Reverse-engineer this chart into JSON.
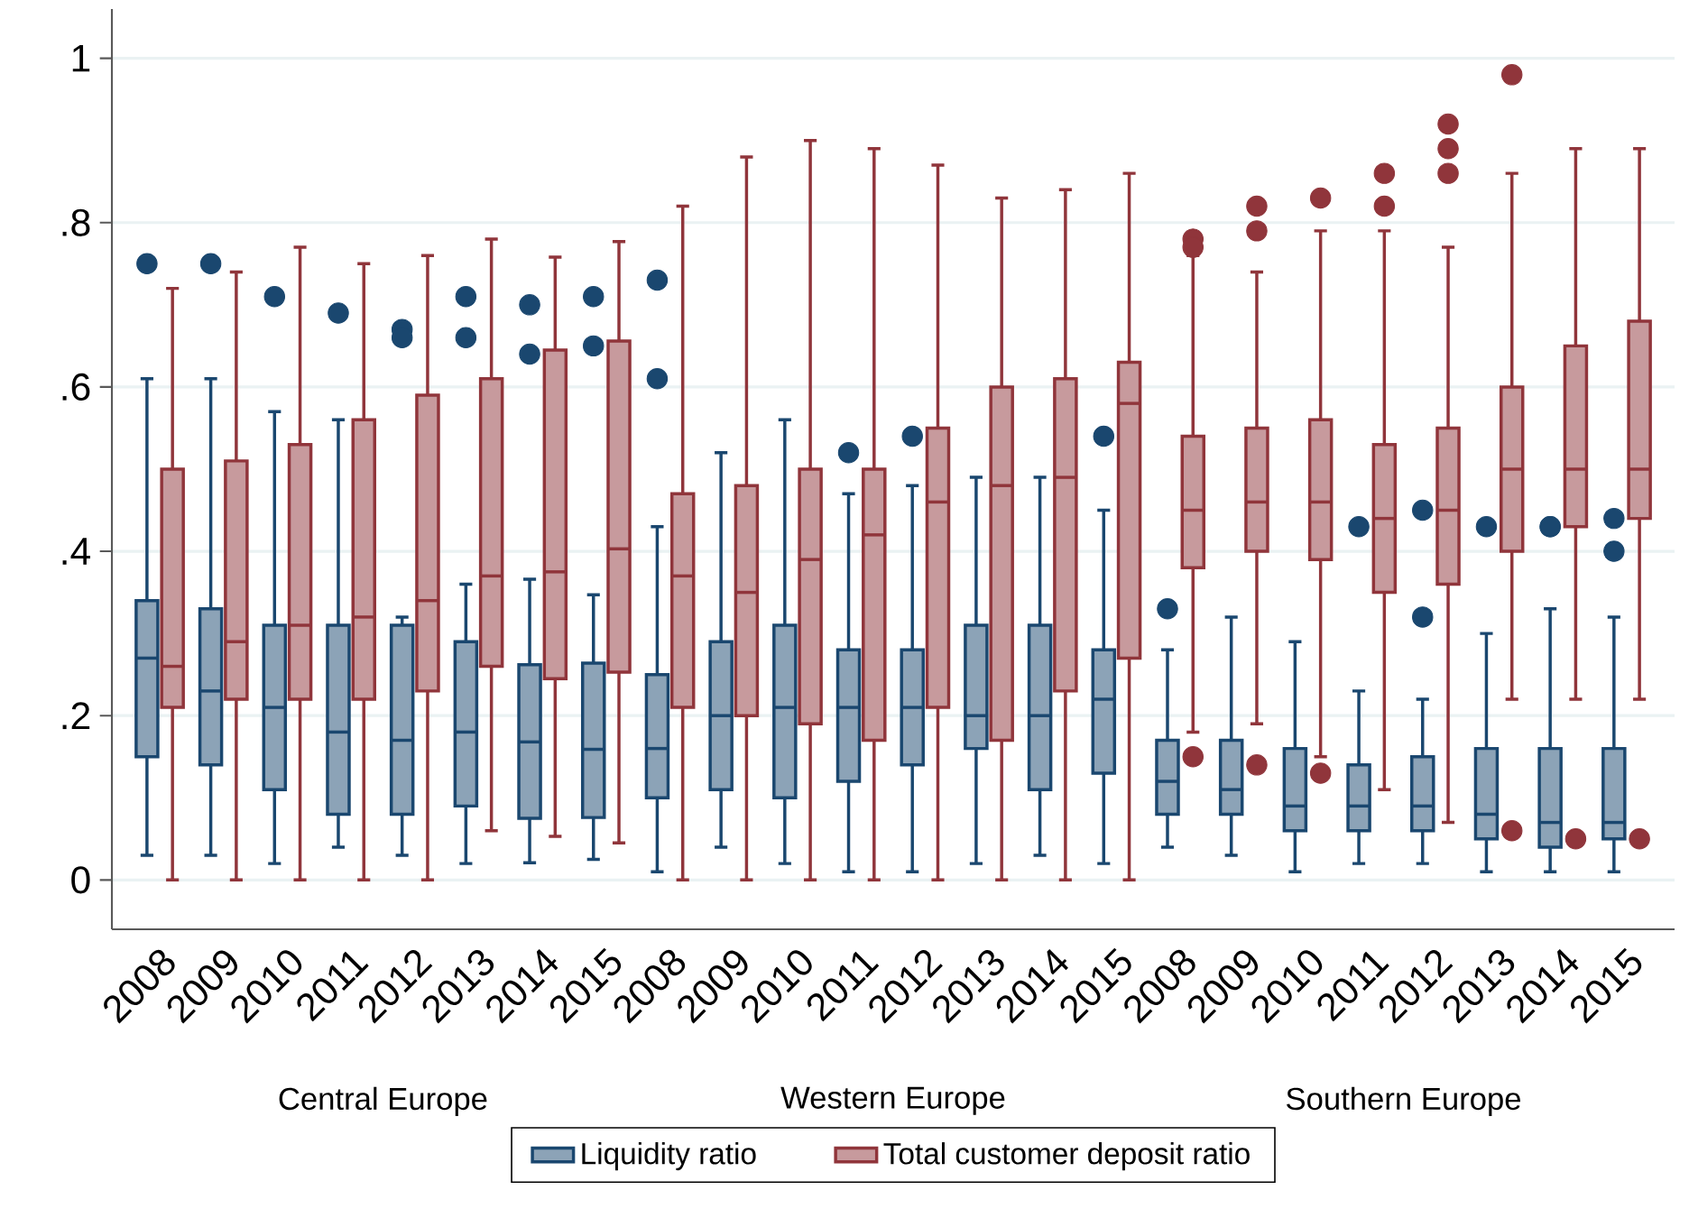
{
  "chart_data": {
    "type": "box",
    "categories": [
      "2008",
      "2009",
      "2010",
      "2011",
      "2012",
      "2013",
      "2014",
      "2015",
      "2008",
      "2009",
      "2010",
      "2011",
      "2012",
      "2013",
      "2014",
      "2015",
      "2008",
      "2009",
      "2010",
      "2011",
      "2012",
      "2013",
      "2014",
      "2015"
    ],
    "annotations": [
      "Central Europe",
      "Western Europe",
      "Southern Europe"
    ],
    "ylim": [
      -0.06,
      1.06
    ],
    "yticks": [
      0,
      {
        "value": 0.2,
        "label": ".2"
      },
      {
        "value": 0.4,
        "label": ".4"
      },
      {
        "value": 0.6,
        "label": ".6"
      },
      {
        "value": 0.8,
        "label": ".8"
      },
      1
    ],
    "grid": "y",
    "legend": "bottom",
    "marker": "circle",
    "series": [
      {
        "name": "Liquidity ratio",
        "color": "#1a476f",
        "boxes": [
          {
            "low": 0.03,
            "q1": 0.15,
            "median": 0.27,
            "q3": 0.34,
            "high": 0.61,
            "outliers": [
              0.75
            ]
          },
          {
            "low": 0.03,
            "q1": 0.14,
            "median": 0.23,
            "q3": 0.33,
            "high": 0.61,
            "outliers": [
              0.75
            ]
          },
          {
            "low": 0.02,
            "q1": 0.11,
            "median": 0.21,
            "q3": 0.31,
            "high": 0.57,
            "outliers": [
              0.71
            ]
          },
          {
            "low": 0.04,
            "q1": 0.08,
            "median": 0.18,
            "q3": 0.31,
            "high": 0.56,
            "outliers": [
              0.69
            ]
          },
          {
            "low": 0.03,
            "q1": 0.08,
            "median": 0.17,
            "q3": 0.31,
            "high": 0.32,
            "outliers": [
              0.67,
              0.66
            ]
          },
          {
            "low": 0.02,
            "q1": 0.09,
            "median": 0.18,
            "q3": 0.29,
            "high": 0.36,
            "outliers": [
              0.71,
              0.66
            ]
          },
          {
            "low": 0.021,
            "q1": 0.075,
            "median": 0.168,
            "q3": 0.262,
            "high": 0.366,
            "outliers": [
              0.7,
              0.64
            ]
          },
          {
            "low": 0.025,
            "q1": 0.076,
            "median": 0.159,
            "q3": 0.264,
            "high": 0.347,
            "outliers": [
              0.71,
              0.65
            ]
          },
          {
            "low": 0.01,
            "q1": 0.1,
            "median": 0.16,
            "q3": 0.25,
            "high": 0.43,
            "outliers": [
              0.73,
              0.61
            ]
          },
          {
            "low": 0.04,
            "q1": 0.11,
            "median": 0.2,
            "q3": 0.29,
            "high": 0.52
          },
          {
            "low": 0.02,
            "q1": 0.1,
            "median": 0.21,
            "q3": 0.31,
            "high": 0.56
          },
          {
            "low": 0.01,
            "q1": 0.12,
            "median": 0.21,
            "q3": 0.28,
            "high": 0.47,
            "outliers": [
              0.52
            ]
          },
          {
            "low": 0.01,
            "q1": 0.14,
            "median": 0.21,
            "q3": 0.28,
            "high": 0.48,
            "outliers": [
              0.54
            ]
          },
          {
            "low": 0.02,
            "q1": 0.16,
            "median": 0.2,
            "q3": 0.31,
            "high": 0.49
          },
          {
            "low": 0.03,
            "q1": 0.11,
            "median": 0.2,
            "q3": 0.31,
            "high": 0.49
          },
          {
            "low": 0.02,
            "q1": 0.13,
            "median": 0.22,
            "q3": 0.28,
            "high": 0.45,
            "outliers": [
              0.54
            ]
          },
          {
            "low": 0.04,
            "q1": 0.08,
            "median": 0.12,
            "q3": 0.17,
            "high": 0.28,
            "outliers": [
              0.33
            ]
          },
          {
            "low": 0.03,
            "q1": 0.08,
            "median": 0.11,
            "q3": 0.17,
            "high": 0.32
          },
          {
            "low": 0.01,
            "q1": 0.06,
            "median": 0.09,
            "q3": 0.16,
            "high": 0.29
          },
          {
            "low": 0.02,
            "q1": 0.06,
            "median": 0.09,
            "q3": 0.14,
            "high": 0.23,
            "outliers": [
              0.43
            ]
          },
          {
            "low": 0.02,
            "q1": 0.06,
            "median": 0.09,
            "q3": 0.15,
            "high": 0.22,
            "outliers": [
              0.45,
              0.32
            ]
          },
          {
            "low": 0.01,
            "q1": 0.05,
            "median": 0.08,
            "q3": 0.16,
            "high": 0.3,
            "outliers": [
              0.43
            ]
          },
          {
            "low": 0.01,
            "q1": 0.04,
            "median": 0.07,
            "q3": 0.16,
            "high": 0.33,
            "outliers": [
              0.43,
              0.43
            ]
          },
          {
            "low": 0.01,
            "q1": 0.05,
            "median": 0.07,
            "q3": 0.16,
            "high": 0.32,
            "outliers": [
              0.44,
              0.4
            ]
          }
        ]
      },
      {
        "name": "Total customer deposit ratio",
        "color": "#90353b",
        "boxes": [
          {
            "low": 0.0,
            "q1": 0.21,
            "median": 0.26,
            "q3": 0.5,
            "high": 0.72
          },
          {
            "low": 0.0,
            "q1": 0.22,
            "median": 0.29,
            "q3": 0.51,
            "high": 0.74
          },
          {
            "low": 0.0,
            "q1": 0.22,
            "median": 0.31,
            "q3": 0.53,
            "high": 0.77
          },
          {
            "low": 0.0,
            "q1": 0.22,
            "median": 0.32,
            "q3": 0.56,
            "high": 0.75
          },
          {
            "low": 0.0,
            "q1": 0.23,
            "median": 0.34,
            "q3": 0.59,
            "high": 0.76
          },
          {
            "low": 0.06,
            "q1": 0.26,
            "median": 0.37,
            "q3": 0.61,
            "high": 0.78
          },
          {
            "low": 0.053,
            "q1": 0.245,
            "median": 0.375,
            "q3": 0.645,
            "high": 0.758
          },
          {
            "low": 0.045,
            "q1": 0.253,
            "median": 0.403,
            "q3": 0.656,
            "high": 0.777
          },
          {
            "low": 0.0,
            "q1": 0.21,
            "median": 0.37,
            "q3": 0.47,
            "high": 0.82
          },
          {
            "low": 0.0,
            "q1": 0.2,
            "median": 0.35,
            "q3": 0.48,
            "high": 0.88
          },
          {
            "low": 0.0,
            "q1": 0.19,
            "median": 0.39,
            "q3": 0.5,
            "high": 0.9
          },
          {
            "low": 0.0,
            "q1": 0.17,
            "median": 0.42,
            "q3": 0.5,
            "high": 0.89
          },
          {
            "low": 0.0,
            "q1": 0.21,
            "median": 0.46,
            "q3": 0.55,
            "high": 0.87
          },
          {
            "low": 0.0,
            "q1": 0.17,
            "median": 0.48,
            "q3": 0.6,
            "high": 0.83
          },
          {
            "low": 0.0,
            "q1": 0.23,
            "median": 0.49,
            "q3": 0.61,
            "high": 0.84
          },
          {
            "low": 0.0,
            "q1": 0.27,
            "median": 0.58,
            "q3": 0.63,
            "high": 0.86
          },
          {
            "low": 0.18,
            "q1": 0.38,
            "median": 0.45,
            "q3": 0.54,
            "high": 0.76,
            "outliers": [
              0.78,
              0.77,
              0.15
            ]
          },
          {
            "low": 0.19,
            "q1": 0.4,
            "median": 0.46,
            "q3": 0.55,
            "high": 0.74,
            "outliers": [
              0.82,
              0.79,
              0.14
            ]
          },
          {
            "low": 0.15,
            "q1": 0.39,
            "median": 0.46,
            "q3": 0.56,
            "high": 0.79,
            "outliers": [
              0.83,
              0.13
            ]
          },
          {
            "low": 0.11,
            "q1": 0.35,
            "median": 0.44,
            "q3": 0.53,
            "high": 0.79,
            "outliers": [
              0.86,
              0.82
            ]
          },
          {
            "low": 0.07,
            "q1": 0.36,
            "median": 0.45,
            "q3": 0.55,
            "high": 0.77,
            "outliers": [
              0.92,
              0.89,
              0.86
            ]
          },
          {
            "low": 0.22,
            "q1": 0.4,
            "median": 0.5,
            "q3": 0.6,
            "high": 0.86,
            "outliers": [
              0.98,
              0.06
            ]
          },
          {
            "low": 0.22,
            "q1": 0.43,
            "median": 0.5,
            "q3": 0.65,
            "high": 0.89,
            "outliers": [
              0.05
            ]
          },
          {
            "low": 0.22,
            "q1": 0.44,
            "median": 0.5,
            "q3": 0.68,
            "high": 0.89,
            "outliers": [
              0.05
            ]
          }
        ]
      }
    ]
  }
}
